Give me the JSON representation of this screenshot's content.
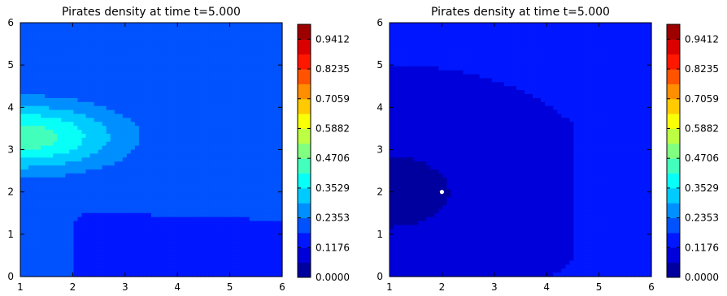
{
  "colors": {
    "cmap": "jet",
    "marker": "#ffffff",
    "axis": "#000000"
  },
  "chart_data": [
    {
      "type": "heatmap",
      "title": "Pirates density at time t=5.000",
      "xlabel": "",
      "ylabel": "",
      "xlim": [
        1,
        6
      ],
      "ylim": [
        0,
        6
      ],
      "xticks": [
        "1",
        "2",
        "3",
        "4",
        "5",
        "6"
      ],
      "yticks": [
        "0",
        "1",
        "2",
        "3",
        "4",
        "5",
        "6"
      ],
      "grid": false,
      "colorbar": {
        "range": [
          0,
          1
        ],
        "ticks": [
          "0.0000",
          "0.1176",
          "0.2353",
          "0.3529",
          "0.4706",
          "0.5882",
          "0.7059",
          "0.8235",
          "0.9412"
        ],
        "levels": 17
      },
      "field": {
        "background": 0.18,
        "max_value": 0.45,
        "peak_location": [
          1.0,
          3.3
        ],
        "low_region": "x from 2 to 6, y from 0 to 1.5",
        "low_value": 0.13
      }
    },
    {
      "type": "heatmap",
      "title": "Pirates density at time t=5.000",
      "xlabel": "",
      "ylabel": "",
      "xlim": [
        1,
        6
      ],
      "ylim": [
        0,
        6
      ],
      "xticks": [
        "1",
        "2",
        "3",
        "4",
        "5",
        "6"
      ],
      "yticks": [
        "0",
        "1",
        "2",
        "3",
        "4",
        "5",
        "6"
      ],
      "grid": false,
      "colorbar": {
        "range": [
          0,
          1
        ],
        "ticks": [
          "0.0000",
          "0.1176",
          "0.2353",
          "0.3529",
          "0.4706",
          "0.5882",
          "0.7059",
          "0.8235",
          "0.9412"
        ],
        "levels": 17
      },
      "field": {
        "background": 0.12,
        "min_value": 0.04,
        "min_location": [
          1.0,
          2.0
        ],
        "right_region_value": 0.13
      },
      "marker": {
        "x": 2.0,
        "y": 2.0
      }
    }
  ]
}
